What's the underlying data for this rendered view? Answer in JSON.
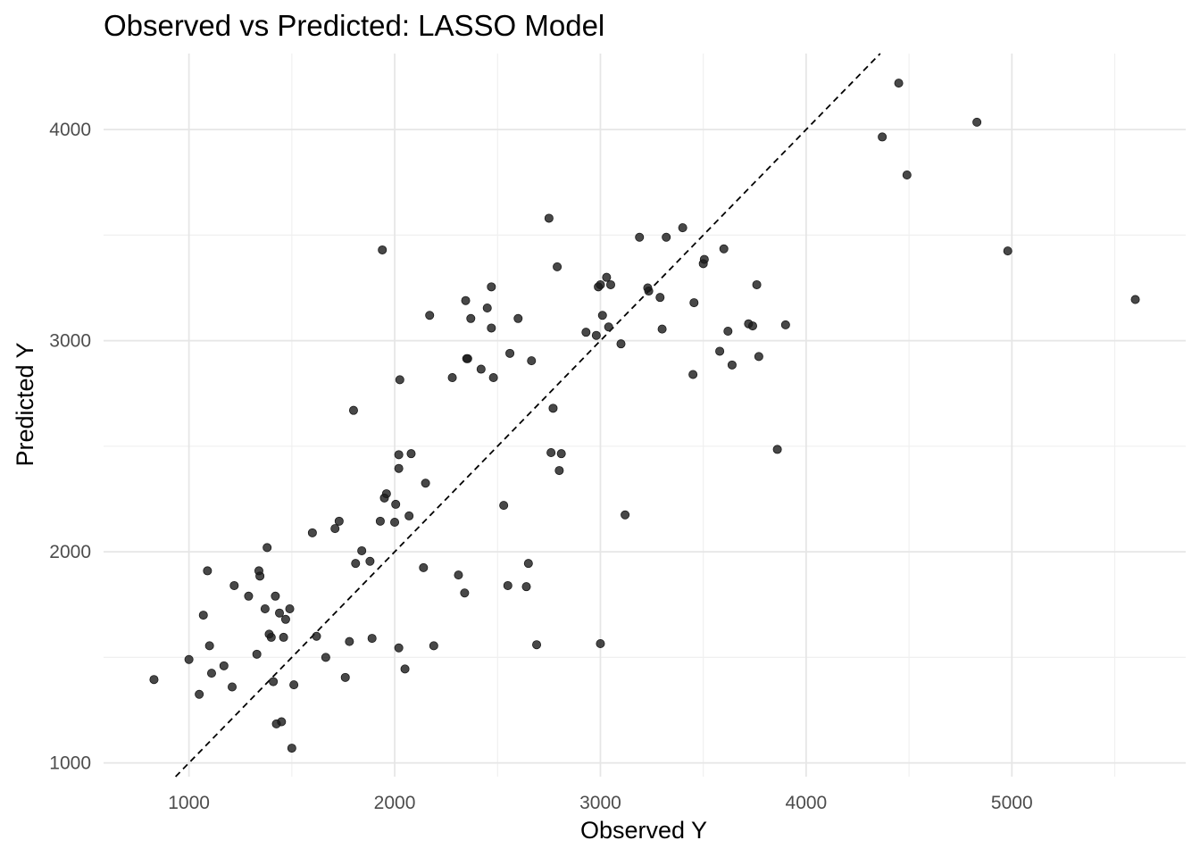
{
  "chart_data": {
    "type": "scatter",
    "title": "Observed vs Predicted: LASSO Model",
    "xlabel": "Observed Y",
    "ylabel": "Predicted Y",
    "xlim": [
      585,
      5845
    ],
    "ylim": [
      935,
      4360
    ],
    "x_ticks": [
      1000,
      2000,
      3000,
      4000,
      5000
    ],
    "y_ticks": [
      1000,
      2000,
      3000,
      4000
    ],
    "grid": true,
    "reference_line": {
      "type": "identity",
      "style": "dashed",
      "color": "#000000"
    },
    "point_color": "#1a1a1a",
    "points": [
      [
        830,
        1395
      ],
      [
        1000,
        1490
      ],
      [
        1050,
        1325
      ],
      [
        1070,
        1700
      ],
      [
        1090,
        1910
      ],
      [
        1100,
        1555
      ],
      [
        1110,
        1425
      ],
      [
        1170,
        1460
      ],
      [
        1210,
        1360
      ],
      [
        1220,
        1840
      ],
      [
        1290,
        1790
      ],
      [
        1330,
        1515
      ],
      [
        1340,
        1910
      ],
      [
        1345,
        1885
      ],
      [
        1370,
        1730
      ],
      [
        1380,
        2020
      ],
      [
        1390,
        1610
      ],
      [
        1400,
        1595
      ],
      [
        1410,
        1385
      ],
      [
        1420,
        1790
      ],
      [
        1425,
        1185
      ],
      [
        1440,
        1710
      ],
      [
        1450,
        1195
      ],
      [
        1460,
        1595
      ],
      [
        1470,
        1680
      ],
      [
        1490,
        1730
      ],
      [
        1500,
        1070
      ],
      [
        1510,
        1370
      ],
      [
        1600,
        2090
      ],
      [
        1620,
        1600
      ],
      [
        1665,
        1500
      ],
      [
        1710,
        2110
      ],
      [
        1730,
        2145
      ],
      [
        1760,
        1405
      ],
      [
        1780,
        1575
      ],
      [
        1800,
        2670
      ],
      [
        1810,
        1945
      ],
      [
        1840,
        2005
      ],
      [
        1880,
        1955
      ],
      [
        1890,
        1590
      ],
      [
        1930,
        2145
      ],
      [
        1940,
        3430
      ],
      [
        1950,
        2255
      ],
      [
        1960,
        2275
      ],
      [
        2000,
        2140
      ],
      [
        2005,
        2225
      ],
      [
        2020,
        2460
      ],
      [
        2020,
        2395
      ],
      [
        2020,
        1545
      ],
      [
        2025,
        2815
      ],
      [
        2050,
        1445
      ],
      [
        2070,
        2170
      ],
      [
        2080,
        2465
      ],
      [
        2140,
        1925
      ],
      [
        2150,
        2325
      ],
      [
        2170,
        3120
      ],
      [
        2190,
        1555
      ],
      [
        2280,
        2825
      ],
      [
        2310,
        1890
      ],
      [
        2340,
        1805
      ],
      [
        2345,
        3190
      ],
      [
        2350,
        2915
      ],
      [
        2355,
        2915
      ],
      [
        2370,
        3105
      ],
      [
        2420,
        2865
      ],
      [
        2450,
        3155
      ],
      [
        2470,
        3255
      ],
      [
        2470,
        3060
      ],
      [
        2480,
        2825
      ],
      [
        2530,
        2220
      ],
      [
        2550,
        1840
      ],
      [
        2560,
        2940
      ],
      [
        2600,
        3105
      ],
      [
        2640,
        1835
      ],
      [
        2650,
        1945
      ],
      [
        2665,
        2905
      ],
      [
        2690,
        1560
      ],
      [
        2750,
        3580
      ],
      [
        2760,
        2470
      ],
      [
        2770,
        2680
      ],
      [
        2790,
        3350
      ],
      [
        2800,
        2385
      ],
      [
        2810,
        2465
      ],
      [
        2930,
        3040
      ],
      [
        2980,
        3025
      ],
      [
        2990,
        3255
      ],
      [
        3000,
        3265
      ],
      [
        3000,
        1565
      ],
      [
        3010,
        3120
      ],
      [
        3030,
        3300
      ],
      [
        3040,
        3065
      ],
      [
        3050,
        3265
      ],
      [
        3100,
        2985
      ],
      [
        3120,
        2175
      ],
      [
        3190,
        3490
      ],
      [
        3230,
        3250
      ],
      [
        3235,
        3235
      ],
      [
        3290,
        3205
      ],
      [
        3300,
        3055
      ],
      [
        3320,
        3490
      ],
      [
        3400,
        3535
      ],
      [
        3450,
        2840
      ],
      [
        3455,
        3180
      ],
      [
        3500,
        3365
      ],
      [
        3505,
        3385
      ],
      [
        3580,
        2950
      ],
      [
        3600,
        3435
      ],
      [
        3620,
        3045
      ],
      [
        3640,
        2885
      ],
      [
        3720,
        3080
      ],
      [
        3740,
        3070
      ],
      [
        3760,
        3265
      ],
      [
        3770,
        2925
      ],
      [
        3860,
        2485
      ],
      [
        3900,
        3075
      ],
      [
        4370,
        3965
      ],
      [
        4450,
        4220
      ],
      [
        4490,
        3785
      ],
      [
        4830,
        4035
      ],
      [
        4980,
        3425
      ],
      [
        5600,
        3195
      ]
    ]
  }
}
